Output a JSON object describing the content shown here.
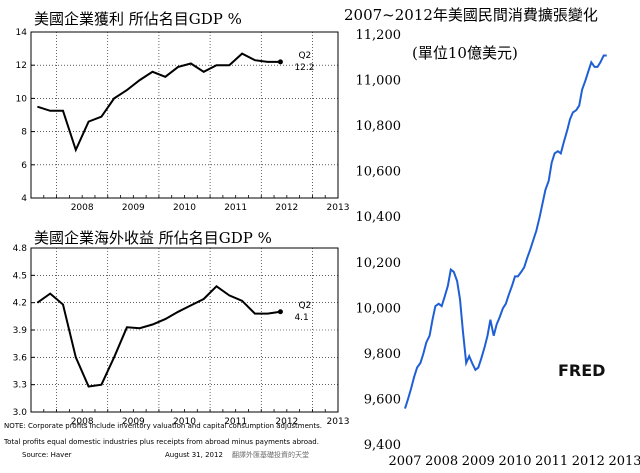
{
  "charts": {
    "top_left": {
      "title": "美國企業獲利 所佔名目GDP %",
      "chart_data": {
        "type": "line",
        "title": "美國企業獲利 所佔名目GDP %",
        "x_ticks": [
          "2008",
          "2009",
          "2010",
          "2011",
          "2012",
          "2013"
        ],
        "y_ticks": [
          "4",
          "6",
          "8",
          "10",
          "12",
          "14"
        ],
        "ylim": [
          4,
          14
        ],
        "grid": true,
        "series": [
          {
            "x": [
              "2007Q3",
              "2007Q4",
              "2008Q1",
              "2008Q2",
              "2008Q3",
              "2008Q4",
              "2009Q1",
              "2009Q2",
              "2009Q3",
              "2009Q4",
              "2010Q1",
              "2010Q2",
              "2010Q3",
              "2010Q4",
              "2011Q1",
              "2011Q2",
              "2011Q3",
              "2011Q4",
              "2012Q1",
              "2012Q2"
            ],
            "values": [
              9.5,
              9.25,
              9.25,
              6.9,
              8.6,
              8.9,
              10.0,
              10.5,
              11.1,
              11.6,
              11.3,
              11.9,
              12.1,
              11.6,
              12.0,
              12.0,
              12.7,
              12.3,
              12.2,
              12.2
            ],
            "color": "#000000"
          }
        ],
        "annotation": {
          "label": "Q2",
          "value_text": "12.2"
        }
      }
    },
    "bottom_left": {
      "title": "美國企業海外收益 所佔名目GDP %",
      "chart_data": {
        "type": "line",
        "title": "美國企業海外收益 所佔名目GDP %",
        "x_ticks": [
          "2008",
          "2009",
          "2010",
          "2011",
          "2012",
          "2013"
        ],
        "y_ticks": [
          "3.0",
          "3.3",
          "3.6",
          "3.9",
          "4.2",
          "4.5",
          "4.8"
        ],
        "ylim": [
          3.0,
          4.8
        ],
        "grid": true,
        "series": [
          {
            "x": [
              "2007Q3",
              "2007Q4",
              "2008Q1",
              "2008Q2",
              "2008Q3",
              "2008Q4",
              "2009Q1",
              "2009Q2",
              "2009Q3",
              "2009Q4",
              "2010Q1",
              "2010Q2",
              "2010Q3",
              "2010Q4",
              "2011Q1",
              "2011Q2",
              "2011Q3",
              "2011Q4",
              "2012Q1",
              "2012Q2"
            ],
            "values": [
              4.2,
              4.3,
              4.18,
              3.6,
              3.28,
              3.3,
              3.6,
              3.93,
              3.92,
              3.96,
              4.02,
              4.1,
              4.17,
              4.24,
              4.38,
              4.28,
              4.22,
              4.08,
              4.08,
              4.1
            ],
            "color": "#000000"
          }
        ],
        "annotation": {
          "label": "Q2",
          "value_text": "4.1"
        }
      }
    },
    "right": {
      "title": "2007~2012年美國民間消費擴張變化",
      "unit_label": "(單位10億美元)",
      "logo": "FRED",
      "chart_data": {
        "type": "line",
        "title": "2007~2012年美國民間消費擴張變化",
        "x_ticks": [
          "2007",
          "2008",
          "2009",
          "2010",
          "2011",
          "2012",
          "2013"
        ],
        "y_ticks": [
          "9,400",
          "9,600",
          "9,800",
          "10,000",
          "10,200",
          "10,400",
          "10,600",
          "10,800",
          "11,000",
          "11,200"
        ],
        "ylim": [
          9400,
          11200
        ],
        "grid": false,
        "series": [
          {
            "x": [
              2007.0,
              2007.08,
              2007.17,
              2007.25,
              2007.33,
              2007.42,
              2007.5,
              2007.58,
              2007.67,
              2007.75,
              2007.83,
              2007.92,
              2008.0,
              2008.08,
              2008.17,
              2008.25,
              2008.33,
              2008.42,
              2008.5,
              2008.58,
              2008.67,
              2008.75,
              2008.83,
              2008.92,
              2009.0,
              2009.08,
              2009.17,
              2009.25,
              2009.33,
              2009.42,
              2009.5,
              2009.58,
              2009.67,
              2009.75,
              2009.83,
              2009.92,
              2010.0,
              2010.08,
              2010.17,
              2010.25,
              2010.33,
              2010.42,
              2010.5,
              2010.58,
              2010.67,
              2010.75,
              2010.83,
              2010.92,
              2011.0,
              2011.08,
              2011.17,
              2011.25,
              2011.33,
              2011.42,
              2011.5,
              2011.58,
              2011.67,
              2011.75,
              2011.83,
              2011.92,
              2012.0,
              2012.08,
              2012.17,
              2012.25,
              2012.33,
              2012.42,
              2012.5
            ],
            "values": [
              9560,
              9600,
              9650,
              9700,
              9740,
              9760,
              9800,
              9850,
              9880,
              9950,
              10010,
              10020,
              10010,
              10050,
              10100,
              10170,
              10160,
              10120,
              10040,
              9900,
              9760,
              9790,
              9760,
              9730,
              9740,
              9780,
              9830,
              9880,
              9950,
              9880,
              9930,
              9960,
              10000,
              10020,
              10060,
              10100,
              10140,
              10140,
              10160,
              10180,
              10220,
              10260,
              10300,
              10340,
              10400,
              10460,
              10520,
              10560,
              10640,
              10680,
              10690,
              10680,
              10730,
              10780,
              10830,
              10860,
              10870,
              10890,
              10960,
              11000,
              11040,
              11080,
              11060,
              11060,
              11080,
              11110,
              11110
            ],
            "color": "#1f5fd6"
          }
        ]
      }
    }
  },
  "footnotes": {
    "note1": "NOTE: Corporate profits include inventory valuation and capital consumption adjustments.",
    "note2": "Total profits equal domestic industries plus receipts from abroad minus payments abroad.",
    "source": "Source: Haver",
    "date": "August 31, 2012",
    "watermark": "翻譯外匯基礎投資的天堂"
  }
}
